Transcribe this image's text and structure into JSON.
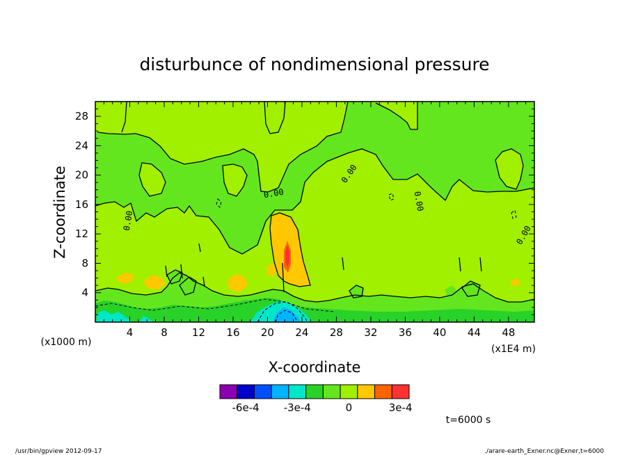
{
  "chart_data": {
    "type": "heatmap",
    "title": "disturbunce of nondimensional pressure",
    "xlabel": "X-coordinate",
    "ylabel": "Z-coordinate",
    "x_unit_label": "(x1000 m)",
    "x_scale_label": "(x1E4 m)",
    "xlim": [
      0,
      51
    ],
    "ylim": [
      0,
      30
    ],
    "xticks": [
      4,
      8,
      12,
      16,
      20,
      24,
      28,
      32,
      36,
      40,
      44,
      48
    ],
    "yticks": [
      4,
      8,
      12,
      16,
      20,
      24,
      28
    ],
    "contour_label": "0.00",
    "colorbar": {
      "colors": [
        "#8b00b0",
        "#0000c8",
        "#0050ff",
        "#00b4ff",
        "#00e6c8",
        "#28d228",
        "#64e61e",
        "#a0f000",
        "#ffc800",
        "#ff6400",
        "#ff3232"
      ],
      "tick_labels": [
        "-6e-4",
        "-3e-4",
        "0",
        "3e-4"
      ],
      "tick_values": [
        -0.0006,
        -0.0003,
        0,
        0.0003
      ],
      "min": -0.00075,
      "max": 0.00035
    },
    "time_label": "t=6000 s",
    "footer_left": "/usr/bin/gpview   2012-09-17",
    "footer_right": "./arare-earth_Exner.nc@Exner,t=6000"
  }
}
